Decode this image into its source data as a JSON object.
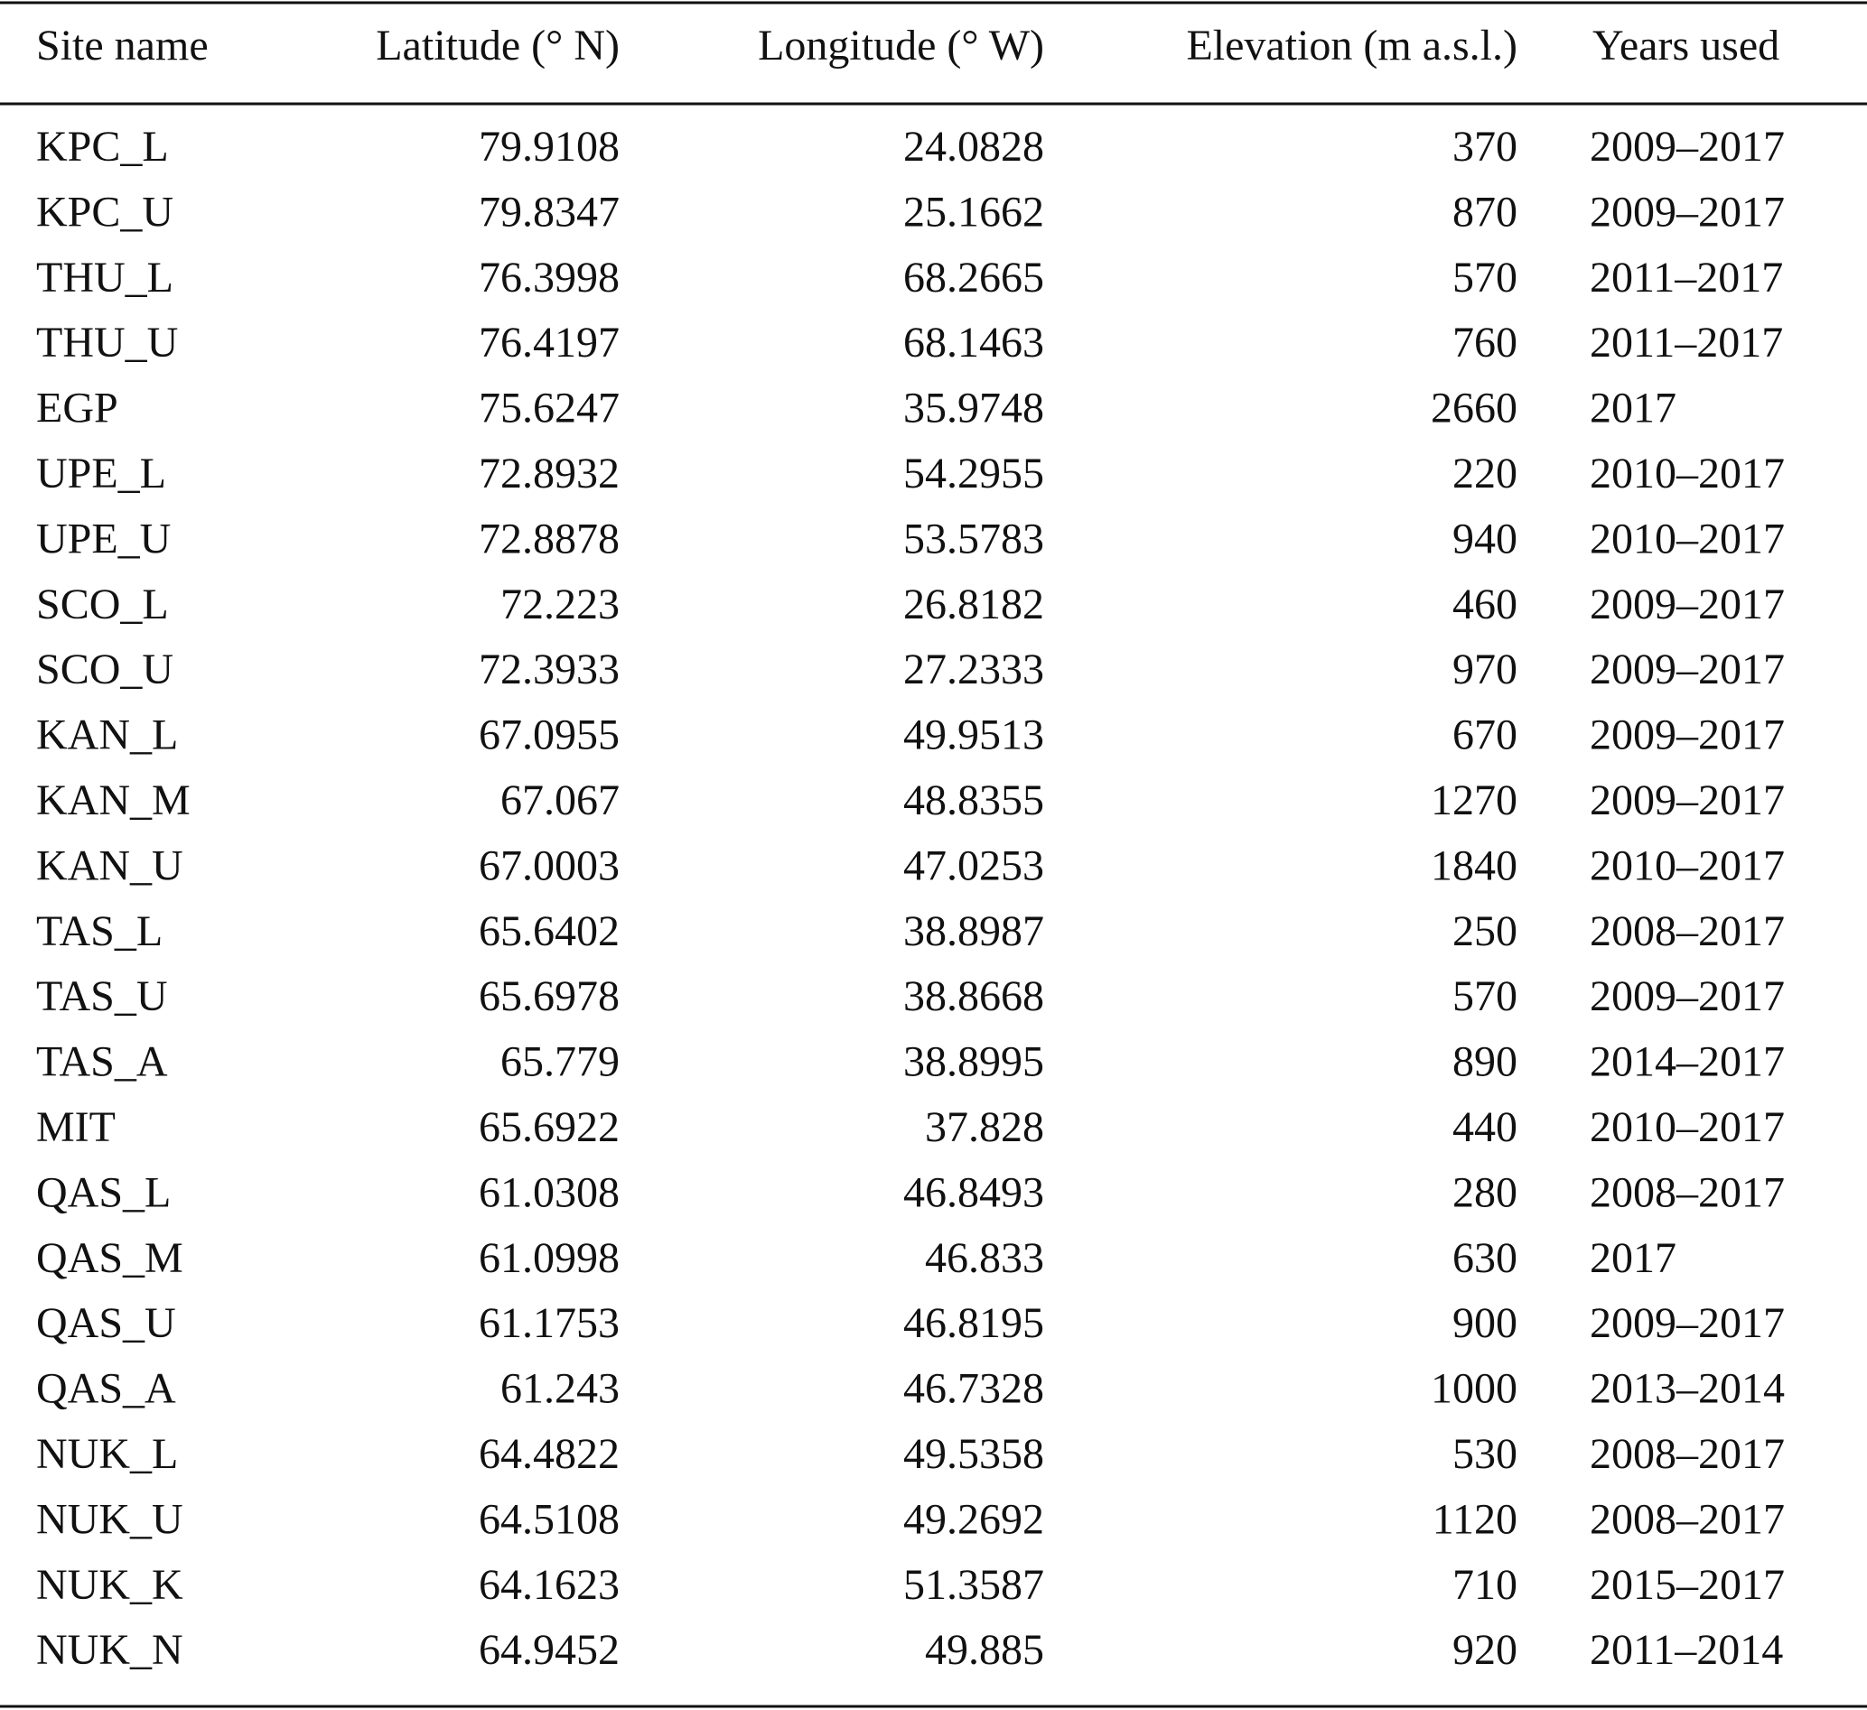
{
  "table": {
    "columns": [
      "Site name",
      "Latitude (° N)",
      "Longitude (° W)",
      "Elevation (m a.s.l.)",
      "Years used"
    ],
    "rows": [
      [
        "KPC_L",
        79.9108,
        24.0828,
        370,
        "2009–2017"
      ],
      [
        "KPC_U",
        79.8347,
        25.1662,
        870,
        "2009–2017"
      ],
      [
        "THU_L",
        76.3998,
        68.2665,
        570,
        "2011–2017"
      ],
      [
        "THU_U",
        76.4197,
        68.1463,
        760,
        "2011–2017"
      ],
      [
        "EGP",
        75.6247,
        35.9748,
        2660,
        "2017"
      ],
      [
        "UPE_L",
        72.8932,
        54.2955,
        220,
        "2010–2017"
      ],
      [
        "UPE_U",
        72.8878,
        53.5783,
        940,
        "2010–2017"
      ],
      [
        "SCO_L",
        72.223,
        26.8182,
        460,
        "2009–2017"
      ],
      [
        "SCO_U",
        72.3933,
        27.2333,
        970,
        "2009–2017"
      ],
      [
        "KAN_L",
        67.0955,
        49.9513,
        670,
        "2009–2017"
      ],
      [
        "KAN_M",
        67.067,
        48.8355,
        1270,
        "2009–2017"
      ],
      [
        "KAN_U",
        67.0003,
        47.0253,
        1840,
        "2010–2017"
      ],
      [
        "TAS_L",
        65.6402,
        38.8987,
        250,
        "2008–2017"
      ],
      [
        "TAS_U",
        65.6978,
        38.8668,
        570,
        "2009–2017"
      ],
      [
        "TAS_A",
        65.779,
        38.8995,
        890,
        "2014–2017"
      ],
      [
        "MIT",
        65.6922,
        37.828,
        440,
        "2010–2017"
      ],
      [
        "QAS_L",
        61.0308,
        46.8493,
        280,
        "2008–2017"
      ],
      [
        "QAS_M",
        61.0998,
        46.833,
        630,
        "2017"
      ],
      [
        "QAS_U",
        61.1753,
        46.8195,
        900,
        "2009–2017"
      ],
      [
        "QAS_A",
        61.243,
        46.7328,
        1000,
        "2013–2014"
      ],
      [
        "NUK_L",
        64.4822,
        49.5358,
        530,
        "2008–2017"
      ],
      [
        "NUK_U",
        64.5108,
        49.2692,
        1120,
        "2008–2017"
      ],
      [
        "NUK_K",
        64.1623,
        51.3587,
        710,
        "2015–2017"
      ],
      [
        "NUK_N",
        64.9452,
        49.885,
        920,
        "2011–2014"
      ]
    ]
  }
}
